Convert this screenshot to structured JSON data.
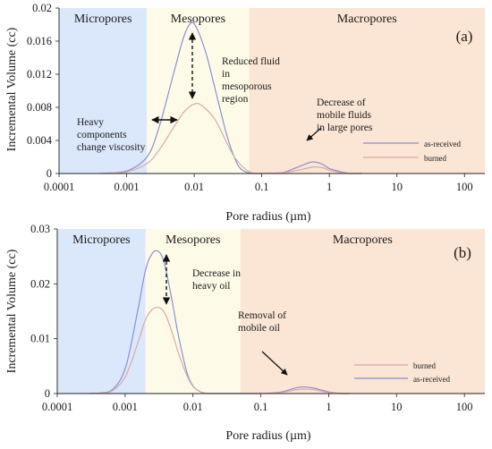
{
  "chart_data": [
    {
      "type": "line",
      "panel_label": "(a)",
      "xlabel": "Pore radius (µm)",
      "ylabel": "Incremental Volume (cc)",
      "x_scale": "log",
      "xlim": [
        0.0001,
        200
      ],
      "ylim": [
        0,
        0.02
      ],
      "x_ticks": [
        "0.0001",
        "0.001",
        "0.01",
        "0.1",
        "1",
        "10",
        "100"
      ],
      "y_ticks": [
        "0",
        "0.004",
        "0.008",
        "0.012",
        "0.016",
        "0.02"
      ],
      "regions": [
        {
          "label": "Micropores",
          "from": 0.0001,
          "to": 0.002,
          "color": "#dbe8fb"
        },
        {
          "label": "Mesopores",
          "from": 0.002,
          "to": 0.065,
          "color": "#fdfbe8"
        },
        {
          "label": "Macropores",
          "from": 0.065,
          "to": 200,
          "color": "#fbe5d4"
        }
      ],
      "series": [
        {
          "name": "as-received",
          "color": "#8a8fd6",
          "x": [
            0.0004,
            0.001,
            0.002,
            0.003,
            0.005,
            0.007,
            0.009,
            0.011,
            0.015,
            0.02,
            0.03,
            0.04,
            0.05,
            0.07,
            0.1,
            0.2,
            0.3,
            0.5,
            0.6,
            0.8,
            1,
            1.5,
            2,
            3
          ],
          "y": [
            0.0,
            0.0003,
            0.002,
            0.0055,
            0.0122,
            0.0165,
            0.0182,
            0.0175,
            0.0145,
            0.0105,
            0.0048,
            0.0018,
            0.0005,
            0.0,
            0.0,
            0.0001,
            0.0006,
            0.0013,
            0.0014,
            0.0011,
            0.0006,
            0.0002,
            0.0,
            0.0
          ]
        },
        {
          "name": "burned",
          "color": "#d9a9a4",
          "x": [
            0.0004,
            0.001,
            0.002,
            0.003,
            0.005,
            0.007,
            0.01,
            0.013,
            0.02,
            0.03,
            0.04,
            0.06,
            0.08,
            0.1,
            0.2,
            0.3,
            0.5,
            0.6,
            0.8,
            1,
            1.5,
            2,
            3
          ],
          "y": [
            0.0,
            0.0002,
            0.0012,
            0.0028,
            0.0056,
            0.0074,
            0.0084,
            0.0082,
            0.0066,
            0.0038,
            0.0019,
            0.0004,
            0.0,
            0.0,
            0.0001,
            0.0003,
            0.0007,
            0.0008,
            0.0007,
            0.0004,
            0.0001,
            0.0,
            0.0
          ]
        }
      ],
      "annotations": [
        {
          "text": [
            "Reduced fluid",
            "in",
            "mesoporous",
            "region"
          ]
        },
        {
          "text": [
            "Heavy",
            "components",
            "change viscosity"
          ]
        },
        {
          "text": [
            "Decrease of",
            "mobile fluids",
            "in large pores"
          ]
        }
      ],
      "legend": [
        "as-received",
        "burned"
      ]
    },
    {
      "type": "line",
      "panel_label": "(b)",
      "xlabel": "Pore radius (µm)",
      "ylabel": "Incremental Volume (cc)",
      "x_scale": "log",
      "xlim": [
        0.0001,
        200
      ],
      "ylim": [
        0,
        0.03
      ],
      "x_ticks": [
        "0.0001",
        "0.001",
        "0.01",
        "0.1",
        "1",
        "10",
        "100"
      ],
      "y_ticks": [
        "0",
        "0.01",
        "0.02",
        "0.03"
      ],
      "regions": [
        {
          "label": "Micropores",
          "from": 0.0001,
          "to": 0.002,
          "color": "#dbe8fb"
        },
        {
          "label": "Mesopores",
          "from": 0.002,
          "to": 0.05,
          "color": "#fdfbe8"
        },
        {
          "label": "Macropores",
          "from": 0.05,
          "to": 200,
          "color": "#fbe5d4"
        }
      ],
      "series": [
        {
          "name": "as-received",
          "color": "#8a8fd6",
          "x": [
            0.0003,
            0.0006,
            0.001,
            0.0015,
            0.002,
            0.0025,
            0.003,
            0.0035,
            0.004,
            0.005,
            0.006,
            0.008,
            0.01,
            0.013,
            0.017,
            0.02,
            0.05,
            0.1,
            0.2,
            0.3,
            0.4,
            0.6,
            0.8,
            1,
            1.5,
            2
          ],
          "y": [
            0.0,
            0.0004,
            0.0045,
            0.0145,
            0.0225,
            0.0255,
            0.026,
            0.025,
            0.0225,
            0.0165,
            0.011,
            0.0042,
            0.0014,
            0.0003,
            0.0,
            0.0,
            0.0,
            0.0,
            0.0003,
            0.0009,
            0.0012,
            0.001,
            0.0006,
            0.0003,
            0.0,
            0.0
          ]
        },
        {
          "name": "burned",
          "color": "#d9a9a4",
          "x": [
            0.0003,
            0.0006,
            0.001,
            0.0015,
            0.002,
            0.0025,
            0.003,
            0.0035,
            0.004,
            0.005,
            0.006,
            0.008,
            0.01,
            0.013,
            0.017,
            0.02,
            0.05,
            0.1,
            0.2,
            0.3,
            0.4,
            0.6,
            0.8,
            1,
            1.5,
            2
          ],
          "y": [
            0.0,
            0.0003,
            0.003,
            0.0088,
            0.0135,
            0.0153,
            0.0157,
            0.0153,
            0.0142,
            0.0109,
            0.0077,
            0.0035,
            0.0013,
            0.0003,
            0.0,
            0.0,
            0.0,
            0.0,
            0.0002,
            0.0006,
            0.0008,
            0.0007,
            0.0004,
            0.0002,
            0.0,
            0.0
          ]
        }
      ],
      "annotations": [
        {
          "text": [
            "Decrease in",
            "heavy oil"
          ]
        },
        {
          "text": [
            "Removal of",
            "mobile oil"
          ]
        }
      ],
      "legend": [
        "burned",
        "as-received"
      ]
    }
  ]
}
